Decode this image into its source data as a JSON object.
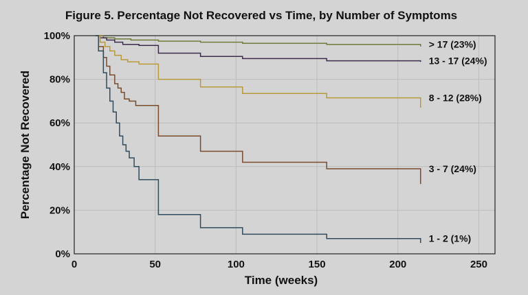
{
  "chart_data": {
    "type": "line",
    "title": "Figure 5. Percentage Not Recovered vs Time, by Number of Symptoms",
    "xlabel": "Time (weeks)",
    "ylabel": "Percentage Not Recovered",
    "xlim": [
      0,
      260
    ],
    "ylim": [
      0,
      100
    ],
    "xticks": [
      0,
      50,
      100,
      150,
      200,
      250
    ],
    "xtick_labels": [
      "0",
      "50",
      "100",
      "150",
      "200",
      "250"
    ],
    "yticks": [
      0,
      20,
      40,
      60,
      80,
      100
    ],
    "ytick_labels": [
      "0%",
      "20%",
      "40%",
      "60%",
      "80%",
      "100%"
    ],
    "grid": true,
    "step": true,
    "series": [
      {
        "name": "> 17 (23%)",
        "color": "#6f7a3a",
        "x": [
          13,
          18,
          25,
          35,
          52,
          78,
          104,
          156,
          214
        ],
        "y": [
          100,
          99,
          98.5,
          98,
          97.5,
          97,
          96.5,
          96,
          95
        ]
      },
      {
        "name": "13 - 17 (24%)",
        "color": "#3e2a4a",
        "x": [
          13,
          16,
          20,
          25,
          30,
          40,
          52,
          78,
          104,
          156,
          214
        ],
        "y": [
          100,
          99,
          98,
          97,
          96,
          95.5,
          92,
          90.5,
          89.5,
          88.5,
          88
        ]
      },
      {
        "name": "8 - 12 (28%)",
        "color": "#b89a38",
        "x": [
          13,
          16,
          19,
          22,
          25,
          29,
          33,
          40,
          52,
          78,
          104,
          156,
          214
        ],
        "y": [
          100,
          97,
          95,
          93,
          91,
          89,
          88,
          87,
          80,
          76.5,
          73.5,
          71.5,
          67
        ]
      },
      {
        "name": "3 - 7 (24%)",
        "color": "#7a4a2c",
        "x": [
          13,
          15,
          18,
          20,
          22,
          25,
          27,
          29,
          31,
          34,
          38,
          52,
          78,
          104,
          156,
          214
        ],
        "y": [
          100,
          95,
          90,
          86,
          82,
          78,
          76,
          74,
          71,
          70,
          68,
          54,
          47,
          42,
          39,
          32
        ]
      },
      {
        "name": "1 - 2 (1%)",
        "color": "#2f4a5a",
        "x": [
          13,
          15,
          18,
          20,
          22,
          24,
          26,
          28,
          30,
          32,
          34,
          37,
          40,
          52,
          78,
          104,
          156,
          214
        ],
        "y": [
          100,
          93,
          83,
          76,
          70,
          65,
          60,
          54,
          50,
          47,
          44,
          40,
          34,
          18,
          12,
          9,
          7,
          5
        ]
      }
    ]
  }
}
